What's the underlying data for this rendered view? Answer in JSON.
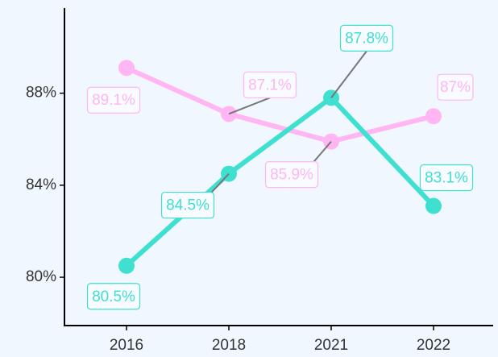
{
  "chart_data": {
    "type": "line",
    "categories": [
      "2016",
      "2018",
      "2021",
      "2022"
    ],
    "series": [
      {
        "color": "#ffb6f2",
        "values": [
          89.1,
          87.1,
          85.9,
          87.0
        ],
        "value_labels": [
          "89.1%",
          "87.1%",
          "85.9%",
          "87%"
        ]
      },
      {
        "color": "#40e0d0",
        "values": [
          80.5,
          84.5,
          87.8,
          83.1
        ],
        "value_labels": [
          "80.5%",
          "84.5%",
          "87.8%",
          "83.1%"
        ]
      }
    ],
    "ylim": [
      77.9,
      91.7
    ],
    "yticks": [
      {
        "value": 80,
        "label": "80%"
      },
      {
        "value": 84,
        "label": "84%"
      },
      {
        "value": 88,
        "label": "88%"
      }
    ]
  }
}
